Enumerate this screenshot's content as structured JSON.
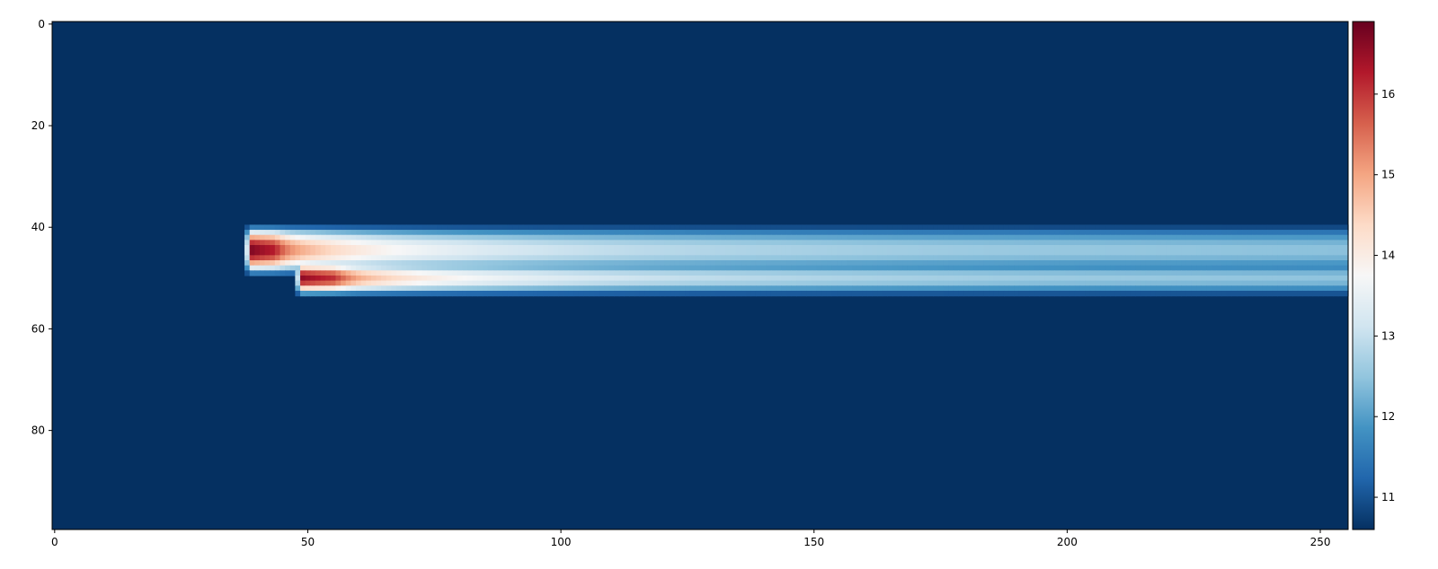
{
  "chart_data": {
    "type": "heatmap",
    "title": "",
    "xlabel": "",
    "ylabel": "",
    "grid": false,
    "colormap": "RdBu_r",
    "colormap_stops": [
      "#053061",
      "#2166ac",
      "#4393c3",
      "#92c5de",
      "#d1e5f0",
      "#f7f7f7",
      "#fddbc7",
      "#f4a582",
      "#d6604d",
      "#b2182b",
      "#67001f"
    ],
    "shape": {
      "rows": 100,
      "cols": 256
    },
    "xlim": [
      0,
      256
    ],
    "ylim": [
      100,
      0
    ],
    "x_ticks": [
      0,
      50,
      100,
      150,
      200,
      250
    ],
    "x_tick_labels": [
      "0",
      "50",
      "100",
      "150",
      "200",
      "250"
    ],
    "y_ticks": [
      0,
      20,
      40,
      60,
      80
    ],
    "y_tick_labels": [
      "0",
      "20",
      "40",
      "60",
      "80"
    ],
    "value_range": [
      10.6,
      16.9
    ],
    "background_value": 10.6,
    "colorbar": {
      "orientation": "vertical",
      "ticks": [
        11,
        12,
        13,
        14,
        15,
        16
      ],
      "tick_labels": [
        "11",
        "12",
        "13",
        "14",
        "15",
        "16"
      ]
    },
    "features": [
      {
        "name": "upper plume",
        "y_center": 45,
        "half_width": 5,
        "x_start": 38,
        "hot_core_x": [
          39,
          45
        ],
        "peak_value": 16.9
      },
      {
        "name": "lower plume",
        "y_center": 50.5,
        "half_width": 3.5,
        "x_start": 48,
        "hot_core_x": [
          49,
          60
        ],
        "peak_value": 16.7
      }
    ]
  }
}
